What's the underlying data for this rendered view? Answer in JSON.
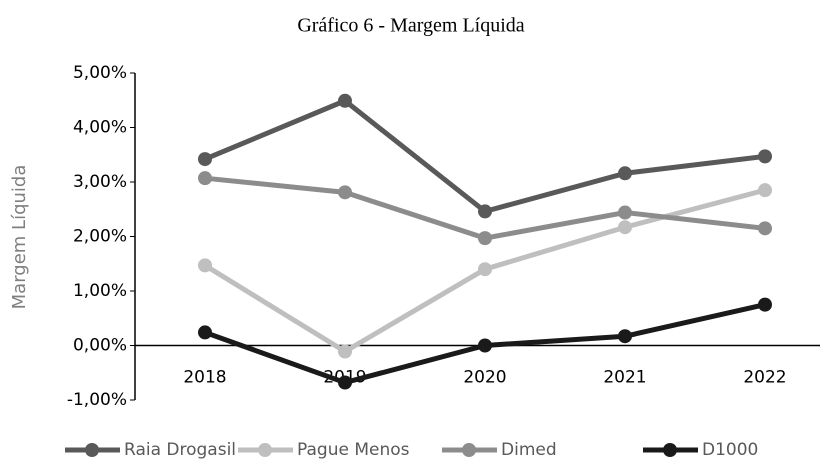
{
  "chart_data": {
    "type": "line",
    "title": "Gráfico 6 - Margem Líquida",
    "y_label": "Margem Líquida",
    "categories": [
      "2018",
      "2019",
      "2020",
      "2021",
      "2022"
    ],
    "series": [
      {
        "name": "Raia Drogasil",
        "color": "#595959",
        "values": [
          3.42,
          4.49,
          2.46,
          3.16,
          3.47
        ]
      },
      {
        "name": "Pague Menos",
        "color": "#bfbfbf",
        "values": [
          1.47,
          -0.11,
          1.4,
          2.17,
          2.85
        ]
      },
      {
        "name": "Dimed",
        "color": "#8c8c8c",
        "values": [
          3.07,
          2.81,
          1.97,
          2.44,
          2.15
        ]
      },
      {
        "name": "D1000",
        "color": "#1a1a1a",
        "values": [
          0.24,
          -0.68,
          0.0,
          0.17,
          0.75
        ]
      }
    ],
    "ylim": [
      -1,
      5
    ],
    "yticks": [
      {
        "value": -1,
        "label": "-1,00%"
      },
      {
        "value": 0,
        "label": "0,00%"
      },
      {
        "value": 1,
        "label": "1,00%"
      },
      {
        "value": 2,
        "label": "2,00%"
      },
      {
        "value": 3,
        "label": "3,00%"
      },
      {
        "value": 4,
        "label": "4,00%"
      },
      {
        "value": 5,
        "label": "5,00%"
      }
    ],
    "legend": "bottom"
  }
}
